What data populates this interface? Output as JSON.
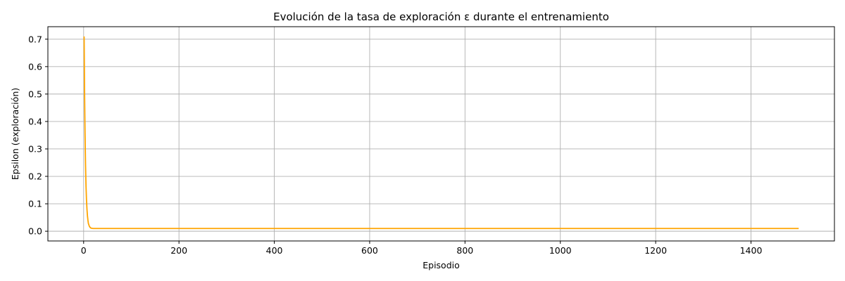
{
  "chart_data": {
    "type": "line",
    "title": "Evolución de la tasa de exploración ε durante el entrenamiento",
    "xlabel": "Episodio",
    "ylabel": "Epsilon (exploración)",
    "xlim": [
      -75,
      1575
    ],
    "ylim": [
      -0.0355,
      0.7455
    ],
    "xticks": [
      0,
      200,
      400,
      600,
      800,
      1000,
      1200,
      1400
    ],
    "yticks": [
      0.0,
      0.1,
      0.2,
      0.3,
      0.4,
      0.5,
      0.6,
      0.7
    ],
    "grid": true,
    "series": [
      {
        "color": "#ffa500",
        "x": [
          1,
          2,
          3,
          4,
          5,
          6,
          7,
          8,
          9,
          10,
          12,
          14,
          16,
          20,
          30,
          100,
          300,
          600,
          1000,
          1500
        ],
        "y": [
          0.71,
          0.5,
          0.35,
          0.24,
          0.165,
          0.115,
          0.08,
          0.056,
          0.04,
          0.028,
          0.018,
          0.013,
          0.011,
          0.01,
          0.01,
          0.01,
          0.01,
          0.01,
          0.01,
          0.01
        ]
      }
    ]
  }
}
